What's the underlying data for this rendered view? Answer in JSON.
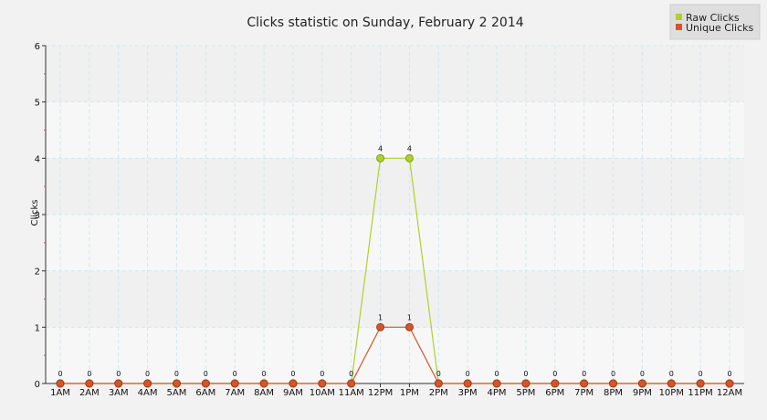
{
  "chart_data": {
    "type": "line",
    "title": "Clicks statistic on Sunday, February 2 2014",
    "xlabel": "",
    "ylabel": "Clicks",
    "ylim": [
      0,
      6
    ],
    "yticks": [
      "0",
      "1",
      "2",
      "3",
      "4",
      "5",
      "6"
    ],
    "categories": [
      "1AM",
      "2AM",
      "3AM",
      "4AM",
      "5AM",
      "6AM",
      "7AM",
      "8AM",
      "9AM",
      "10AM",
      "11AM",
      "12PM",
      "1PM",
      "2PM",
      "3PM",
      "4PM",
      "5PM",
      "6PM",
      "7PM",
      "8PM",
      "9PM",
      "10PM",
      "11PM",
      "12AM"
    ],
    "series": [
      {
        "name": "Raw Clicks",
        "color": "#aed12b",
        "values": [
          0,
          0,
          0,
          0,
          0,
          0,
          0,
          0,
          0,
          0,
          0,
          4,
          4,
          0,
          0,
          0,
          0,
          0,
          0,
          0,
          0,
          0,
          0,
          0
        ]
      },
      {
        "name": "Unique Clicks",
        "color": "#d2562c",
        "values": [
          0,
          0,
          0,
          0,
          0,
          0,
          0,
          0,
          0,
          0,
          0,
          1,
          1,
          0,
          0,
          0,
          0,
          0,
          0,
          0,
          0,
          0,
          0,
          0
        ]
      }
    ],
    "grid": true,
    "legend_position": "top-right"
  }
}
